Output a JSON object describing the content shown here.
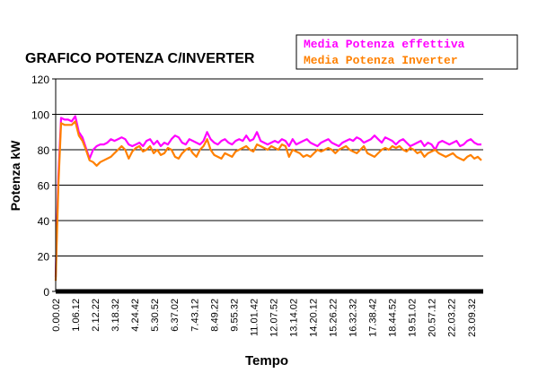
{
  "chart_data": {
    "type": "line",
    "title": "GRAFICO POTENZA C/INVERTER",
    "xlabel": "Tempo",
    "ylabel": "Potenza kW",
    "ylim": [
      0,
      120
    ],
    "yticks": [
      0,
      20,
      40,
      60,
      80,
      100,
      120
    ],
    "grid": "horizontal",
    "legend_position": "top-right",
    "x_tick_labels": [
      "0.00.02",
      "1.06.12",
      "2.12.22",
      "3.18.32",
      "4.24.42",
      "5.30.52",
      "6.37.02",
      "7.43.12",
      "8.49.22",
      "9.55.32",
      "11.01.42",
      "12.07.52",
      "13.14.02",
      "14.20.12",
      "15.26.22",
      "16.32.32",
      "17.38.42",
      "18.44.52",
      "19.51.02",
      "20.57.12",
      "22.03.22",
      "23.09.32"
    ],
    "x_range_hours": [
      0,
      24
    ],
    "series": [
      {
        "name": "Media Potenza effettiva",
        "color": "#FF00FF",
        "x": [
          0,
          0.05,
          0.15,
          0.3,
          0.5,
          0.7,
          0.9,
          1.1,
          1.3,
          1.5,
          1.7,
          1.9,
          2.1,
          2.3,
          2.5,
          2.7,
          2.9,
          3.1,
          3.3,
          3.5,
          3.7,
          3.9,
          4.1,
          4.3,
          4.5,
          4.7,
          4.9,
          5.1,
          5.3,
          5.5,
          5.7,
          5.9,
          6.1,
          6.3,
          6.5,
          6.7,
          6.9,
          7.1,
          7.3,
          7.5,
          7.7,
          7.9,
          8.1,
          8.3,
          8.5,
          8.7,
          8.9,
          9.1,
          9.3,
          9.5,
          9.7,
          9.9,
          10.1,
          10.3,
          10.5,
          10.7,
          10.9,
          11.1,
          11.3,
          11.5,
          11.7,
          11.9,
          12.1,
          12.3,
          12.5,
          12.7,
          12.9,
          13.1,
          13.3,
          13.5,
          13.7,
          13.9,
          14.1,
          14.3,
          14.5,
          14.7,
          14.9,
          15.1,
          15.3,
          15.5,
          15.7,
          15.9,
          16.1,
          16.3,
          16.5,
          16.7,
          16.9,
          17.1,
          17.3,
          17.5,
          17.7,
          17.9,
          18.1,
          18.3,
          18.5,
          18.7,
          18.9,
          19.1,
          19.3,
          19.5,
          19.7,
          19.9,
          20.1,
          20.3,
          20.5,
          20.7,
          20.9,
          21.1,
          21.3,
          21.5,
          21.7,
          21.9,
          22.1,
          22.3,
          22.5,
          22.7,
          22.9,
          23.1,
          23.3,
          23.5,
          23.7,
          23.9
        ],
        "y": [
          8,
          30,
          65,
          98,
          97,
          97,
          96,
          99,
          90,
          87,
          81,
          75,
          80,
          82,
          83,
          83,
          84,
          86,
          85,
          86,
          87,
          86,
          83,
          82,
          83,
          84,
          82,
          85,
          86,
          83,
          85,
          82,
          84,
          83,
          86,
          88,
          87,
          84,
          83,
          86,
          85,
          84,
          83,
          85,
          90,
          86,
          84,
          83,
          85,
          86,
          84,
          83,
          85,
          86,
          85,
          88,
          85,
          86,
          90,
          85,
          84,
          83,
          84,
          85,
          84,
          86,
          85,
          82,
          86,
          83,
          84,
          85,
          86,
          84,
          83,
          82,
          84,
          85,
          86,
          84,
          83,
          82,
          84,
          85,
          86,
          85,
          87,
          86,
          84,
          85,
          86,
          88,
          86,
          84,
          87,
          86,
          85,
          83,
          85,
          86,
          84,
          82,
          83,
          84,
          85,
          82,
          84,
          83,
          80,
          84,
          85,
          84,
          83,
          84,
          85,
          82,
          83,
          85,
          86,
          84,
          83,
          83
        ]
      },
      {
        "name": "Media Potenza Inverter",
        "color": "#FF8000",
        "x": [
          0,
          0.05,
          0.15,
          0.3,
          0.5,
          0.7,
          0.9,
          1.1,
          1.3,
          1.5,
          1.7,
          1.9,
          2.1,
          2.3,
          2.5,
          2.7,
          2.9,
          3.1,
          3.3,
          3.5,
          3.7,
          3.9,
          4.1,
          4.3,
          4.5,
          4.7,
          4.9,
          5.1,
          5.3,
          5.5,
          5.7,
          5.9,
          6.1,
          6.3,
          6.5,
          6.7,
          6.9,
          7.1,
          7.3,
          7.5,
          7.7,
          7.9,
          8.1,
          8.3,
          8.5,
          8.7,
          8.9,
          9.1,
          9.3,
          9.5,
          9.7,
          9.9,
          10.1,
          10.3,
          10.5,
          10.7,
          10.9,
          11.1,
          11.3,
          11.5,
          11.7,
          11.9,
          12.1,
          12.3,
          12.5,
          12.7,
          12.9,
          13.1,
          13.3,
          13.5,
          13.7,
          13.9,
          14.1,
          14.3,
          14.5,
          14.7,
          14.9,
          15.1,
          15.3,
          15.5,
          15.7,
          15.9,
          16.1,
          16.3,
          16.5,
          16.7,
          16.9,
          17.1,
          17.3,
          17.5,
          17.7,
          17.9,
          18.1,
          18.3,
          18.5,
          18.7,
          18.9,
          19.1,
          19.3,
          19.5,
          19.7,
          19.9,
          20.1,
          20.3,
          20.5,
          20.7,
          20.9,
          21.1,
          21.3,
          21.5,
          21.7,
          21.9,
          22.1,
          22.3,
          22.5,
          22.7,
          22.9,
          23.1,
          23.3,
          23.5,
          23.7,
          23.9
        ],
        "y": [
          6,
          25,
          60,
          95,
          94,
          94,
          94,
          96,
          88,
          85,
          80,
          74,
          73,
          71,
          73,
          74,
          75,
          76,
          78,
          80,
          82,
          80,
          75,
          79,
          81,
          82,
          79,
          80,
          82,
          78,
          80,
          77,
          78,
          81,
          80,
          76,
          75,
          78,
          80,
          81,
          78,
          76,
          80,
          82,
          86,
          80,
          77,
          76,
          75,
          78,
          77,
          76,
          79,
          80,
          81,
          82,
          80,
          79,
          83,
          82,
          81,
          80,
          82,
          81,
          80,
          83,
          82,
          76,
          80,
          79,
          78,
          76,
          77,
          76,
          78,
          80,
          79,
          80,
          81,
          80,
          78,
          80,
          81,
          82,
          80,
          79,
          78,
          80,
          82,
          78,
          77,
          76,
          78,
          80,
          81,
          80,
          82,
          81,
          82,
          80,
          79,
          81,
          80,
          78,
          79,
          76,
          78,
          79,
          80,
          78,
          77,
          76,
          77,
          78,
          76,
          75,
          74,
          76,
          77,
          75,
          76,
          74
        ]
      }
    ]
  }
}
